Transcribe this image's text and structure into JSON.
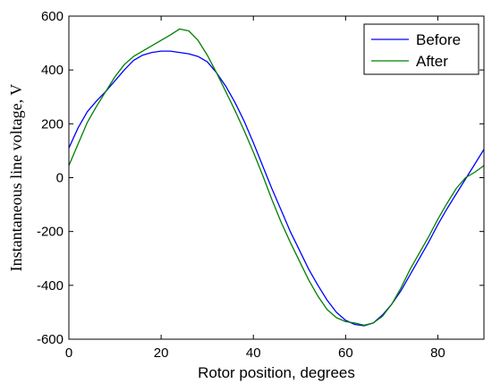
{
  "chart_data": {
    "type": "line",
    "title": "",
    "xlabel": "Rotor position, degrees",
    "ylabel": "Instantaneous line voltage, V",
    "xlim": [
      0,
      90
    ],
    "ylim": [
      -600,
      600
    ],
    "xticks": [
      "0",
      "20",
      "40",
      "60",
      "80"
    ],
    "xtick_values": [
      0,
      20,
      40,
      60,
      80
    ],
    "yticks": [
      "600",
      "400",
      "200",
      "0",
      "-200",
      "-400",
      "-600"
    ],
    "ytick_values": [
      600,
      400,
      200,
      0,
      -200,
      -400,
      -600
    ],
    "grid": false,
    "legend_position": "top-right",
    "series": [
      {
        "name": "Before",
        "color": "#0000ff",
        "x": [
          0,
          2,
          4,
          6,
          8,
          10,
          12,
          14,
          16,
          18,
          20,
          22,
          24,
          26,
          28,
          30,
          32,
          34,
          36,
          38,
          40,
          42,
          44,
          46,
          48,
          50,
          52,
          54,
          56,
          58,
          60,
          62,
          64,
          66,
          68,
          70,
          72,
          74,
          76,
          78,
          80,
          82,
          84,
          86,
          88,
          90
        ],
        "y": [
          110,
          185,
          245,
          285,
          320,
          360,
          400,
          435,
          455,
          465,
          470,
          470,
          465,
          460,
          450,
          430,
          390,
          340,
          280,
          210,
          130,
          45,
          -40,
          -120,
          -200,
          -270,
          -340,
          -400,
          -455,
          -500,
          -530,
          -545,
          -550,
          -540,
          -510,
          -470,
          -420,
          -360,
          -300,
          -240,
          -175,
          -115,
          -60,
          -5,
          50,
          105
        ]
      },
      {
        "name": "After",
        "color": "#008000",
        "x": [
          0,
          2,
          4,
          6,
          8,
          10,
          12,
          14,
          16,
          18,
          20,
          22,
          24,
          26,
          28,
          30,
          32,
          34,
          36,
          38,
          40,
          42,
          44,
          46,
          48,
          50,
          52,
          54,
          56,
          58,
          60,
          62,
          64,
          66,
          68,
          70,
          72,
          74,
          76,
          78,
          80,
          82,
          84,
          86,
          88,
          90
        ],
        "y": [
          45,
          125,
          205,
          265,
          320,
          375,
          420,
          450,
          470,
          490,
          510,
          530,
          552,
          545,
          510,
          455,
          390,
          320,
          250,
          175,
          95,
          10,
          -80,
          -165,
          -240,
          -310,
          -380,
          -440,
          -490,
          -520,
          -535,
          -540,
          -548,
          -540,
          -515,
          -470,
          -410,
          -340,
          -280,
          -220,
          -155,
          -95,
          -40,
          0,
          20,
          45
        ]
      }
    ]
  }
}
